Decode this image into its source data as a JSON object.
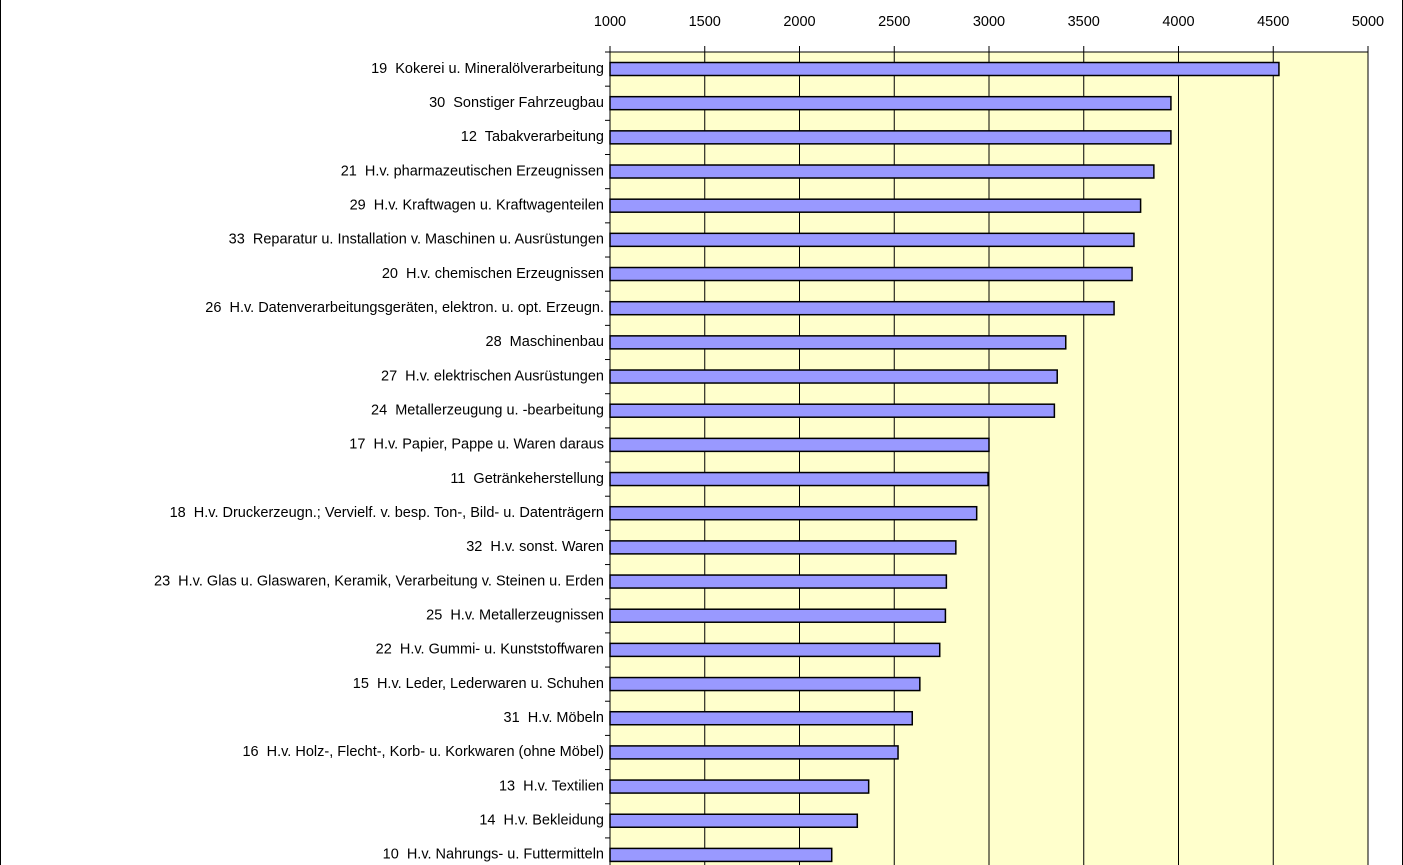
{
  "chart_data": {
    "type": "bar",
    "orientation": "horizontal",
    "categories": [
      "19  Kokerei u. Mineralölverarbeitung",
      "30  Sonstiger Fahrzeugbau",
      "12  Tabakverarbeitung",
      "21  H.v. pharmazeutischen Erzeugnissen",
      "29  H.v. Kraftwagen u. Kraftwagenteilen",
      "33  Reparatur u. Installation v. Maschinen u. Ausrüstungen",
      "20  H.v. chemischen Erzeugnissen",
      "26  H.v. Datenverarbeitungsgeräten, elektron. u. opt. Erzeugn.",
      "28  Maschinenbau",
      "27  H.v. elektrischen Ausrüstungen",
      "24  Metallerzeugung u. -bearbeitung",
      "17  H.v. Papier, Pappe u. Waren daraus",
      "11  Getränkeherstellung",
      "18  H.v. Druckerzeugn.; Vervielf. v. besp. Ton-, Bild- u. Datenträgern",
      "32  H.v. sonst. Waren",
      "23  H.v. Glas u. Glaswaren, Keramik, Verarbeitung v. Steinen u. Erden",
      "25  H.v. Metallerzeugnissen",
      "22  H.v. Gummi- u. Kunststoffwaren",
      "15  H.v. Leder, Lederwaren u. Schuhen",
      "31  H.v. Möbeln",
      "16  H.v. Holz-, Flecht-, Korb- u. Korkwaren (ohne Möbel)",
      "13  H.v. Textilien",
      "14  H.v. Bekleidung",
      "10  H.v. Nahrungs- u. Futtermitteln"
    ],
    "values": [
      4530,
      3960,
      3960,
      3870,
      3800,
      3765,
      3755,
      3660,
      3405,
      3360,
      3345,
      3000,
      2995,
      2935,
      2825,
      2775,
      2770,
      2740,
      2635,
      2595,
      2520,
      2365,
      2305,
      2170
    ],
    "color": "#9999ff",
    "background": "#ffffcc",
    "xlim": [
      1000,
      5000
    ],
    "xticks": [
      1000,
      1500,
      2000,
      2500,
      3000,
      3500,
      4000,
      4500,
      5000
    ],
    "grid": true
  }
}
